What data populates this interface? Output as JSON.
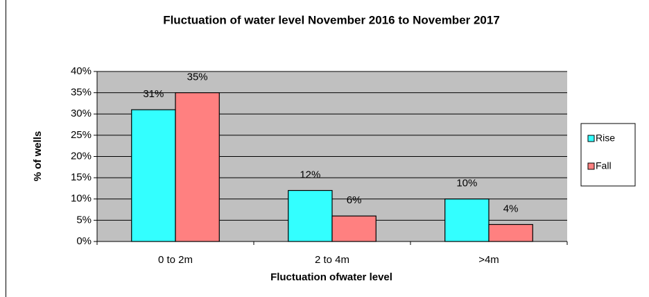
{
  "chart_data": {
    "type": "bar",
    "title": "Fluctuation of water level November 2016 to November 2017",
    "x_label": "Fluctuation ofwater level",
    "y_label": "% of wells",
    "categories": [
      "0 to 2m",
      "2 to 4m",
      ">4m"
    ],
    "series": [
      {
        "name": "Rise",
        "color": "#33ffff",
        "values": [
          31,
          12,
          10
        ],
        "value_labels": [
          "31%",
          "12%",
          "10%"
        ]
      },
      {
        "name": "Fall",
        "color": "#ff8080",
        "values": [
          35,
          6,
          4
        ],
        "value_labels": [
          "35%",
          "6%",
          "4%"
        ]
      }
    ],
    "ylim": [
      0,
      40
    ],
    "yticks": [
      {
        "value": 0,
        "label": "0%"
      },
      {
        "value": 5,
        "label": "5%"
      },
      {
        "value": 10,
        "label": "10%"
      },
      {
        "value": 15,
        "label": "15%"
      },
      {
        "value": 20,
        "label": "20%"
      },
      {
        "value": 25,
        "label": "25%"
      },
      {
        "value": 30,
        "label": "30%"
      },
      {
        "value": 35,
        "label": "35%"
      },
      {
        "value": 40,
        "label": "40%"
      }
    ],
    "grid": true,
    "legend": "right"
  }
}
